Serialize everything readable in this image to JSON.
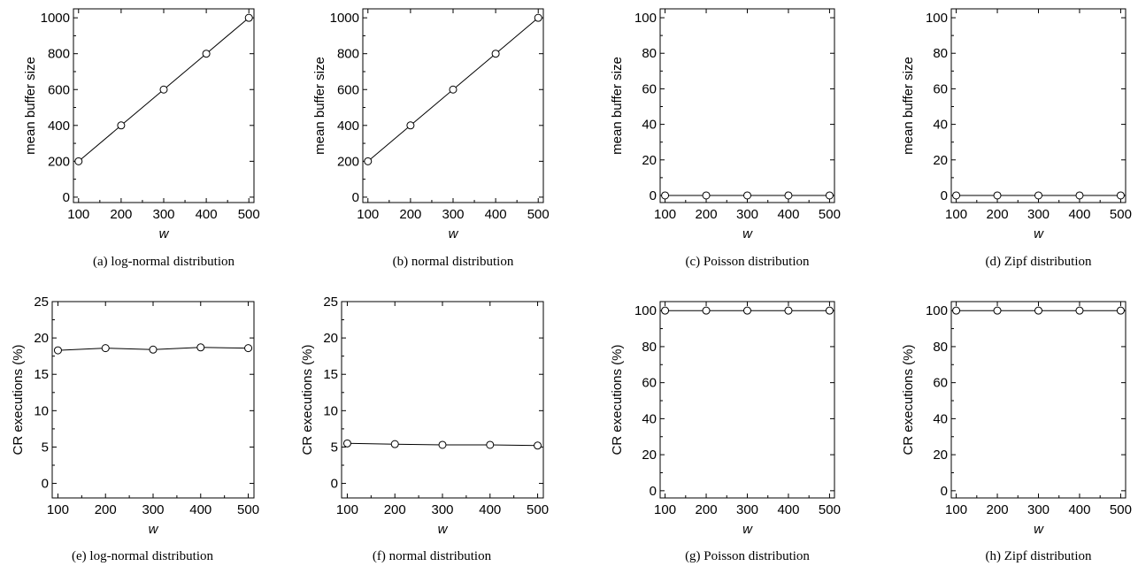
{
  "figure": {
    "chart_data": [
      {
        "type": "line",
        "caption": "(a) log-normal distribution",
        "xlabel": "w",
        "ylabel": "mean buffer size",
        "x": [
          100,
          200,
          300,
          400,
          500
        ],
        "series": [
          {
            "values": [
              200,
              400,
              600,
              800,
              1000
            ]
          }
        ],
        "xlim": [
          88,
          512
        ],
        "ylim": [
          -30,
          1050
        ],
        "xticks": [
          100,
          200,
          300,
          400,
          500
        ],
        "yticks": [
          0,
          200,
          400,
          600,
          800,
          1000
        ],
        "yminor": 100,
        "grid": false
      },
      {
        "type": "line",
        "caption": "(b) normal distribution",
        "xlabel": "w",
        "ylabel": "mean buffer size",
        "x": [
          100,
          200,
          300,
          400,
          500
        ],
        "series": [
          {
            "values": [
              200,
              400,
              600,
              800,
              1000
            ]
          }
        ],
        "xlim": [
          88,
          512
        ],
        "ylim": [
          -30,
          1050
        ],
        "xticks": [
          100,
          200,
          300,
          400,
          500
        ],
        "yticks": [
          0,
          200,
          400,
          600,
          800,
          1000
        ],
        "yminor": 100,
        "grid": false
      },
      {
        "type": "line",
        "caption": "(c) Poisson distribution",
        "xlabel": "w",
        "ylabel": "mean buffer size",
        "x": [
          100,
          200,
          300,
          400,
          500
        ],
        "series": [
          {
            "values": [
              0,
              0,
              0,
              0,
              0
            ]
          }
        ],
        "xlim": [
          88,
          512
        ],
        "ylim": [
          -4,
          105
        ],
        "xticks": [
          100,
          200,
          300,
          400,
          500
        ],
        "yticks": [
          0,
          20,
          40,
          60,
          80,
          100
        ],
        "yminor": 10,
        "grid": false
      },
      {
        "type": "line",
        "caption": "(d) Zipf distribution",
        "xlabel": "w",
        "ylabel": "mean buffer size",
        "x": [
          100,
          200,
          300,
          400,
          500
        ],
        "series": [
          {
            "values": [
              0,
              0,
              0,
              0,
              0
            ]
          }
        ],
        "xlim": [
          88,
          512
        ],
        "ylim": [
          -4,
          105
        ],
        "xticks": [
          100,
          200,
          300,
          400,
          500
        ],
        "yticks": [
          0,
          20,
          40,
          60,
          80,
          100
        ],
        "yminor": 10,
        "grid": false
      },
      {
        "type": "line",
        "caption": "(e) log-normal distribution",
        "xlabel": "w",
        "ylabel": "CR executions (%)",
        "x": [
          100,
          200,
          300,
          400,
          500
        ],
        "series": [
          {
            "values": [
              18.3,
              18.6,
              18.4,
              18.7,
              18.6
            ]
          }
        ],
        "xlim": [
          88,
          512
        ],
        "ylim": [
          -2,
          25
        ],
        "xticks": [
          100,
          200,
          300,
          400,
          500
        ],
        "yticks": [
          0,
          5,
          10,
          15,
          20,
          25
        ],
        "yminor": 2.5,
        "grid": false
      },
      {
        "type": "line",
        "caption": "(f) normal distribution",
        "xlabel": "w",
        "ylabel": "CR executions (%)",
        "x": [
          100,
          200,
          300,
          400,
          500
        ],
        "series": [
          {
            "values": [
              5.5,
              5.4,
              5.3,
              5.3,
              5.2
            ]
          }
        ],
        "xlim": [
          88,
          512
        ],
        "ylim": [
          -2,
          25
        ],
        "xticks": [
          100,
          200,
          300,
          400,
          500
        ],
        "yticks": [
          0,
          5,
          10,
          15,
          20,
          25
        ],
        "yminor": 2.5,
        "grid": false
      },
      {
        "type": "line",
        "caption": "(g) Poisson distribution",
        "xlabel": "w",
        "ylabel": "CR executions (%)",
        "x": [
          100,
          200,
          300,
          400,
          500
        ],
        "series": [
          {
            "values": [
              100,
              100,
              100,
              100,
              100
            ]
          }
        ],
        "xlim": [
          88,
          512
        ],
        "ylim": [
          -4,
          105
        ],
        "xticks": [
          100,
          200,
          300,
          400,
          500
        ],
        "yticks": [
          0,
          20,
          40,
          60,
          80,
          100
        ],
        "yminor": 10,
        "grid": false
      },
      {
        "type": "line",
        "caption": "(h) Zipf distribution",
        "xlabel": "w",
        "ylabel": "CR executions (%)",
        "x": [
          100,
          200,
          300,
          400,
          500
        ],
        "series": [
          {
            "values": [
              100,
              100,
              100,
              100,
              100
            ]
          }
        ],
        "xlim": [
          88,
          512
        ],
        "ylim": [
          -4,
          105
        ],
        "xticks": [
          100,
          200,
          300,
          400,
          500
        ],
        "yticks": [
          0,
          20,
          40,
          60,
          80,
          100
        ],
        "yminor": 10,
        "grid": false
      }
    ]
  }
}
